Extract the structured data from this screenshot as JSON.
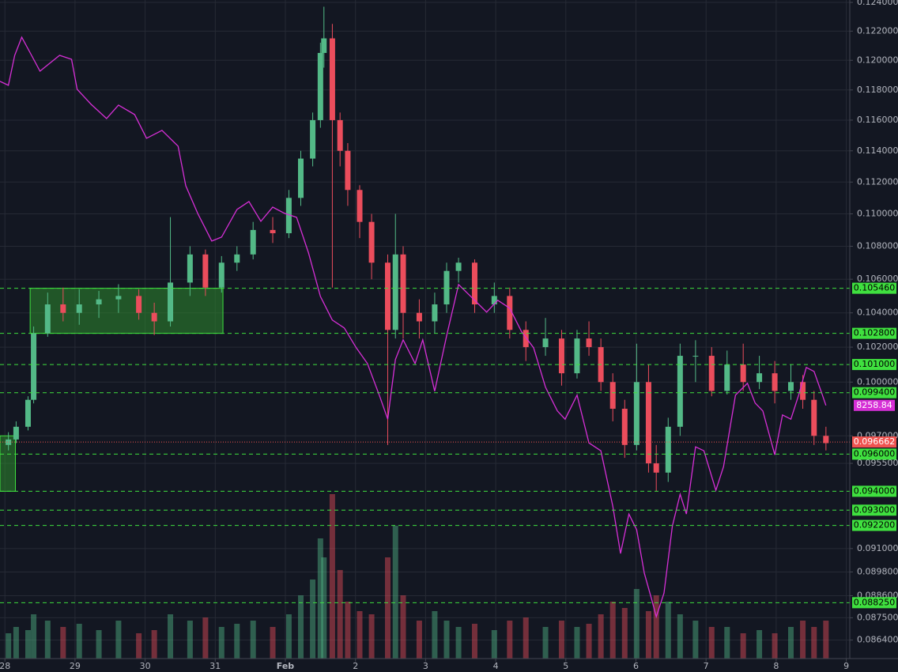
{
  "chart_data": {
    "type": "candlestick",
    "log_scale": true,
    "grid": true,
    "up_color": "#53b987",
    "down_color": "#eb4d5c",
    "level_color": "#3fe03f",
    "current_color": "#ef5350",
    "zone_color": "#2e8b2e",
    "xlim": [
      -0.07,
      12.05
    ],
    "xticks": [
      {
        "value": 0,
        "label": "28"
      },
      {
        "value": 1,
        "label": "29"
      },
      {
        "value": 2,
        "label": "30"
      },
      {
        "value": 3,
        "label": "31"
      },
      {
        "value": 4,
        "label": "Feb"
      },
      {
        "value": 5,
        "label": "2"
      },
      {
        "value": 6,
        "label": "3"
      },
      {
        "value": 7,
        "label": "4"
      },
      {
        "value": 8,
        "label": "5"
      },
      {
        "value": 9,
        "label": "6"
      },
      {
        "value": 10,
        "label": "7"
      },
      {
        "value": 11,
        "label": "8"
      },
      {
        "value": 12,
        "label": "9"
      }
    ],
    "ylim": [
      0.0855,
      0.12417
    ],
    "yticks": [
      {
        "value": 0.124,
        "label": "0.124000"
      },
      {
        "value": 0.122,
        "label": "0.122000"
      },
      {
        "value": 0.12,
        "label": "0.120000"
      },
      {
        "value": 0.118,
        "label": "0.118000"
      },
      {
        "value": 0.116,
        "label": "0.116000"
      },
      {
        "value": 0.114,
        "label": "0.114000"
      },
      {
        "value": 0.112,
        "label": "0.112000"
      },
      {
        "value": 0.11,
        "label": "0.110000"
      },
      {
        "value": 0.108,
        "label": "0.108000"
      },
      {
        "value": 0.106,
        "label": "0.106000"
      },
      {
        "value": 0.104,
        "label": "0.104000"
      },
      {
        "value": 0.102,
        "label": "0.102000"
      },
      {
        "value": 0.1,
        "label": "0.100000"
      },
      {
        "value": 0.097,
        "label": "0.097000"
      },
      {
        "value": 0.0955,
        "label": "0.095500"
      },
      {
        "value": 0.091,
        "label": "0.091000"
      },
      {
        "value": 0.0898,
        "label": "0.089800"
      },
      {
        "value": 0.0886,
        "label": "0.088600"
      },
      {
        "value": 0.0875,
        "label": "0.087500"
      },
      {
        "value": 0.0864,
        "label": "0.086400"
      }
    ],
    "y2lim": [
      7490,
      9490
    ],
    "y3lim": [
      0,
      100
    ],
    "x": [
      0.05,
      0.16,
      0.33,
      0.41,
      0.61,
      0.83,
      1.06,
      1.34,
      1.62,
      1.91,
      2.13,
      2.36,
      2.64,
      2.86,
      3.09,
      3.31,
      3.54,
      3.82,
      4.05,
      4.22,
      4.39,
      4.5,
      4.55,
      4.67,
      4.78,
      4.89,
      5.06,
      5.23,
      5.46,
      5.57,
      5.68,
      5.91,
      6.13,
      6.3,
      6.47,
      6.7,
      6.98,
      7.2,
      7.43,
      7.71,
      7.94,
      8.16,
      8.33,
      8.5,
      8.67,
      8.84,
      9.01,
      9.18,
      9.29,
      9.46,
      9.63,
      9.85,
      10.08,
      10.3,
      10.53,
      10.76,
      10.98,
      11.21,
      11.38,
      11.54,
      11.71
    ],
    "open": [
      0.0965,
      0.0968,
      0.0975,
      0.099,
      0.1028,
      0.1045,
      0.104,
      0.1045,
      0.1048,
      0.105,
      0.104,
      0.1035,
      0.1058,
      0.1075,
      0.1055,
      0.107,
      0.1075,
      0.109,
      0.1088,
      0.111,
      0.1135,
      0.116,
      0.1205,
      0.1215,
      0.116,
      0.114,
      0.1115,
      0.1095,
      0.107,
      0.103,
      0.1075,
      0.104,
      0.1035,
      0.1045,
      0.1065,
      0.107,
      0.1045,
      0.105,
      0.103,
      0.102,
      0.1025,
      0.1005,
      0.1025,
      0.102,
      0.1,
      0.0985,
      0.0965,
      0.1,
      0.0955,
      0.095,
      0.0975,
      0.1015,
      0.1015,
      0.0995,
      0.101,
      0.1,
      0.1005,
      0.0995,
      0.1,
      0.099,
      0.097
    ],
    "high": [
      0.0972,
      0.0978,
      0.0992,
      0.1032,
      0.1052,
      0.1055,
      0.1054,
      0.1053,
      0.1057,
      0.1054,
      0.1046,
      0.1098,
      0.108,
      0.1078,
      0.1074,
      0.108,
      0.1095,
      0.1098,
      0.1115,
      0.114,
      0.1165,
      0.1212,
      0.1237,
      0.1225,
      0.1165,
      0.1145,
      0.1118,
      0.11,
      0.1075,
      0.11,
      0.108,
      0.1048,
      0.1052,
      0.107,
      0.1073,
      0.1072,
      0.1058,
      0.1055,
      0.1035,
      0.1037,
      0.103,
      0.103,
      0.1035,
      0.1025,
      0.1005,
      0.099,
      0.1022,
      0.101,
      0.0965,
      0.098,
      0.1022,
      0.1024,
      0.102,
      0.1018,
      0.1022,
      0.1015,
      0.1012,
      0.101,
      0.1004,
      0.0995,
      0.0975
    ],
    "low": [
      0.0962,
      0.0966,
      0.0973,
      0.0988,
      0.1026,
      0.1035,
      0.1033,
      0.1037,
      0.104,
      0.1036,
      0.1027,
      0.1032,
      0.105,
      0.105,
      0.1052,
      0.1065,
      0.1072,
      0.1082,
      0.1085,
      0.1105,
      0.113,
      0.1155,
      0.1195,
      0.1055,
      0.113,
      0.1105,
      0.1085,
      0.106,
      0.0965,
      0.1025,
      0.1025,
      0.1025,
      0.1028,
      0.104,
      0.1058,
      0.104,
      0.104,
      0.1025,
      0.1012,
      0.1015,
      0.0998,
      0.1002,
      0.1015,
      0.0995,
      0.0978,
      0.0958,
      0.0962,
      0.095,
      0.094,
      0.0945,
      0.097,
      0.1,
      0.0992,
      0.0993,
      0.0995,
      0.0996,
      0.0988,
      0.099,
      0.0985,
      0.0965,
      0.0962
    ],
    "close": [
      0.0968,
      0.0975,
      0.099,
      0.1028,
      0.1045,
      0.104,
      0.1045,
      0.1048,
      0.105,
      0.104,
      0.1035,
      0.1058,
      0.1075,
      0.1055,
      0.107,
      0.1075,
      0.109,
      0.1088,
      0.111,
      0.1135,
      0.116,
      0.1205,
      0.1215,
      0.116,
      0.114,
      0.1115,
      0.1095,
      0.107,
      0.103,
      0.1075,
      0.104,
      0.1035,
      0.1045,
      0.1065,
      0.107,
      0.1045,
      0.105,
      0.103,
      0.102,
      0.1025,
      0.1005,
      0.1025,
      0.102,
      0.1,
      0.0985,
      0.0965,
      0.1,
      0.0955,
      0.095,
      0.0975,
      0.1015,
      0.1015,
      0.0995,
      0.101,
      0.1,
      0.1005,
      0.0995,
      0.1,
      0.099,
      0.097,
      0.0966
    ],
    "volume": [
      8,
      10,
      9,
      14,
      12,
      10,
      11,
      9,
      12,
      8,
      9,
      14,
      12,
      13,
      10,
      11,
      12,
      10,
      14,
      20,
      25,
      38,
      32,
      52,
      28,
      18,
      15,
      14,
      32,
      42,
      20,
      12,
      15,
      12,
      10,
      11,
      9,
      12,
      13,
      10,
      12,
      10,
      11,
      14,
      18,
      16,
      22,
      15,
      20,
      18,
      14,
      12,
      10,
      10,
      8,
      9,
      8,
      10,
      12,
      10,
      12
    ],
    "series": [
      {
        "color": "#d62fd6",
        "axis": "y2",
        "x": [
          -0.07,
          0.05,
          0.14,
          0.24,
          0.38,
          0.5,
          0.61,
          0.78,
          0.95,
          1.03,
          1.23,
          1.45,
          1.62,
          1.85,
          2.02,
          2.24,
          2.47,
          2.58,
          2.75,
          2.95,
          3.09,
          3.31,
          3.48,
          3.65,
          3.82,
          3.99,
          4.16,
          4.33,
          4.5,
          4.67,
          4.84,
          5.01,
          5.17,
          5.34,
          5.46,
          5.57,
          5.68,
          5.85,
          5.96,
          6.13,
          6.3,
          6.47,
          6.7,
          6.87,
          7.03,
          7.2,
          7.37,
          7.54,
          7.71,
          7.88,
          7.99,
          8.16,
          8.33,
          8.5,
          8.67,
          8.78,
          8.9,
          9.01,
          9.12,
          9.23,
          9.29,
          9.4,
          9.52,
          9.63,
          9.72,
          9.85,
          9.97,
          10.14,
          10.25,
          10.42,
          10.59,
          10.7,
          10.81,
          10.98,
          11.09,
          11.21,
          11.32,
          11.43,
          11.54,
          11.66,
          11.71
        ],
        "values": [
          9243,
          9231,
          9322,
          9377,
          9322,
          9274,
          9293,
          9322,
          9310,
          9219,
          9173,
          9130,
          9171,
          9142,
          9070,
          9094,
          9046,
          8926,
          8842,
          8758,
          8770,
          8854,
          8878,
          8818,
          8861,
          8842,
          8830,
          8722,
          8590,
          8518,
          8494,
          8434,
          8386,
          8290,
          8217,
          8398,
          8458,
          8386,
          8458,
          8302,
          8470,
          8626,
          8578,
          8542,
          8578,
          8554,
          8482,
          8434,
          8314,
          8242,
          8217,
          8290,
          8145,
          8121,
          7953,
          7809,
          7929,
          7881,
          7749,
          7665,
          7617,
          7689,
          7893,
          7989,
          7929,
          8133,
          8121,
          8001,
          8073,
          8290,
          8326,
          8266,
          8242,
          8109,
          8230,
          8217,
          8290,
          8374,
          8362,
          8290,
          8258.84
        ]
      }
    ],
    "zones": [
      {
        "x": [
          0.36,
          3.11
        ],
        "y": [
          0.1028,
          0.10546
        ]
      },
      {
        "x": [
          -0.07,
          0.15
        ],
        "y": [
          0.094,
          0.097
        ]
      }
    ],
    "levels": [
      {
        "value": 0.10546,
        "label": "0.105460"
      },
      {
        "value": 0.1028,
        "label": "0.102800"
      },
      {
        "value": 0.101,
        "label": "0.101000"
      },
      {
        "value": 0.0994,
        "label": "0.099400"
      },
      {
        "value": 0.096,
        "label": "0.096000"
      },
      {
        "value": 0.094,
        "label": "0.094000"
      },
      {
        "value": 0.093,
        "label": "0.093000"
      },
      {
        "value": 0.0922,
        "label": "0.092200"
      },
      {
        "value": 0.08825,
        "label": "0.088250"
      }
    ],
    "last_price": 0.096662
  }
}
